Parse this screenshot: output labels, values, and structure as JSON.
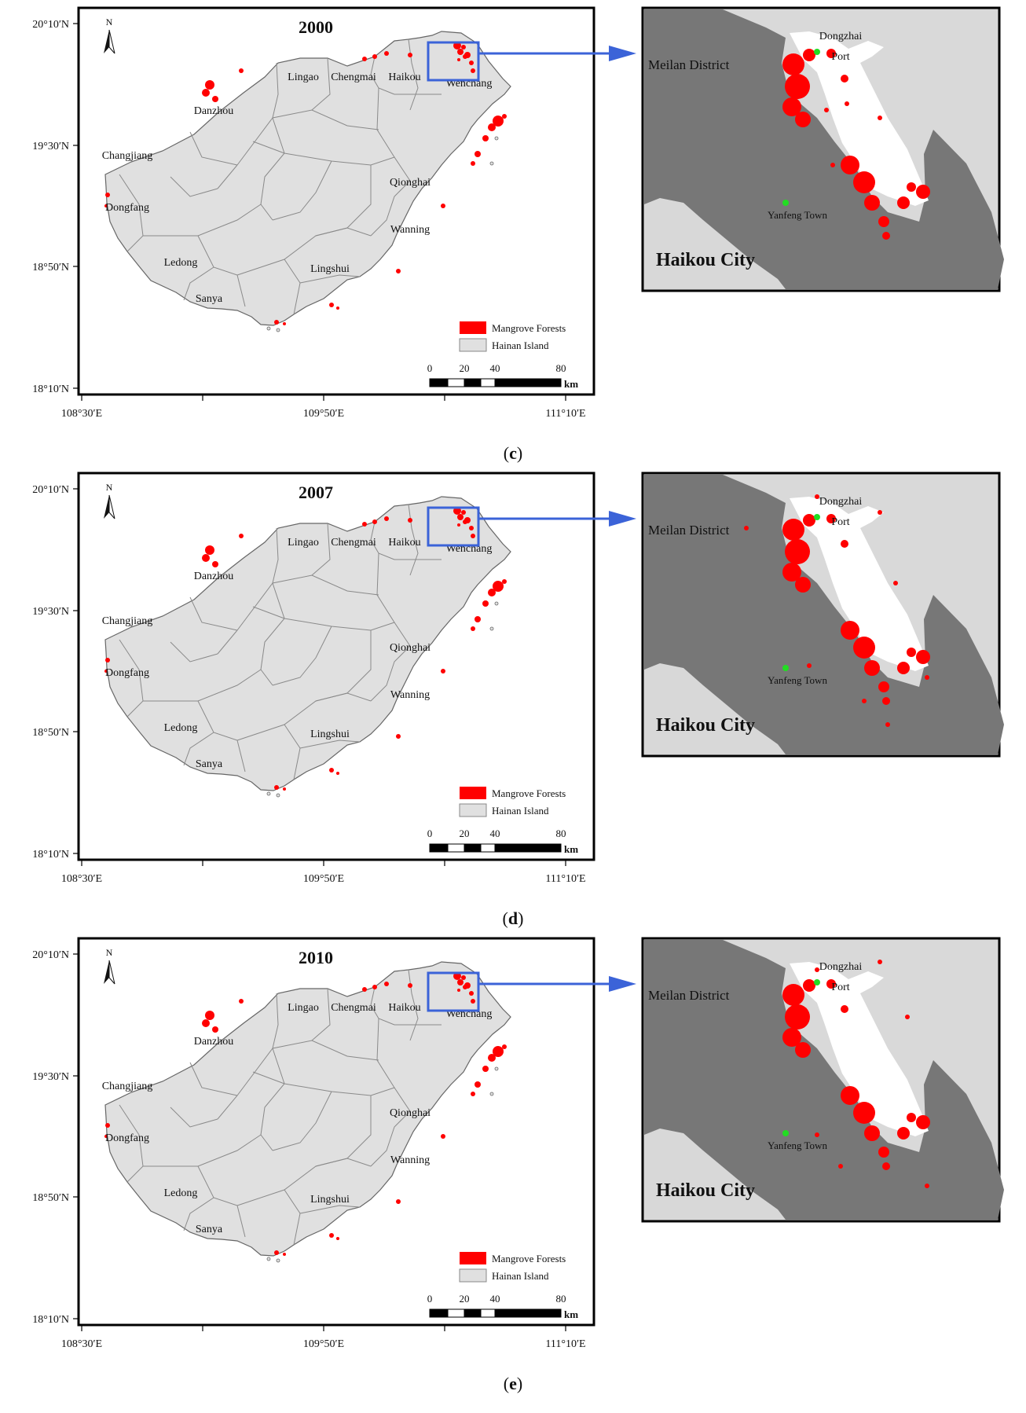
{
  "panels": [
    {
      "id": "c",
      "caption_open": "(",
      "caption_letter": "c",
      "caption_close": ")",
      "year": "2000",
      "inset_extra": [
        [
          1052,
          140
        ],
        [
          1078,
          132
        ],
        [
          1120,
          150
        ],
        [
          1060,
          210
        ]
      ]
    },
    {
      "id": "d",
      "caption_open": "(",
      "caption_letter": "d",
      "caption_close": ")",
      "year": "2007",
      "inset_extra": [
        [
          950,
          80
        ],
        [
          1040,
          40
        ],
        [
          1120,
          60
        ],
        [
          1140,
          150
        ],
        [
          1180,
          270
        ],
        [
          1100,
          300
        ],
        [
          1130,
          330
        ],
        [
          1030,
          255
        ]
      ]
    },
    {
      "id": "e",
      "caption_open": "(",
      "caption_letter": "e",
      "caption_close": ")",
      "year": "2010",
      "inset_extra": [
        [
          1040,
          50
        ],
        [
          1120,
          40
        ],
        [
          1155,
          110
        ],
        [
          1070,
          300
        ],
        [
          1180,
          325
        ],
        [
          1040,
          260
        ]
      ]
    }
  ],
  "map": {
    "north_label": "N",
    "lat_labels": [
      "20°10′N",
      "19°30′N",
      "18°50′N",
      "18°10′N"
    ],
    "lon_labels": [
      "108°30′E",
      "109°50′E",
      "111°10′E"
    ],
    "cities": [
      "Lingao",
      "Chengmai",
      "Haikou",
      "Wenchang",
      "Danzhou",
      "Changjiang",
      "Qionghai",
      "Dongfang",
      "Wanning",
      "Ledong",
      "Lingshui",
      "Sanya"
    ],
    "legend": {
      "mangrove": "Mangrove Forests",
      "island": "Hainan Island"
    },
    "scale": {
      "ticks": [
        "0",
        "20",
        "40",
        "80"
      ],
      "unit": "km"
    }
  },
  "inset": {
    "meilan": "Meilan District",
    "dongzhai_line1": "Dongzhai",
    "dongzhai_line2": "Port",
    "yanfeng": "Yanfeng Town",
    "haikou": "Haikou City"
  },
  "colors": {
    "mangrove": "#ff0000",
    "island": "#e0e0e0",
    "district_line": "#8a8a8a",
    "inset_land": "#777777",
    "inset_light": "#d8d8d8",
    "highlight": "#3b63d8",
    "point": "#22dd22"
  }
}
